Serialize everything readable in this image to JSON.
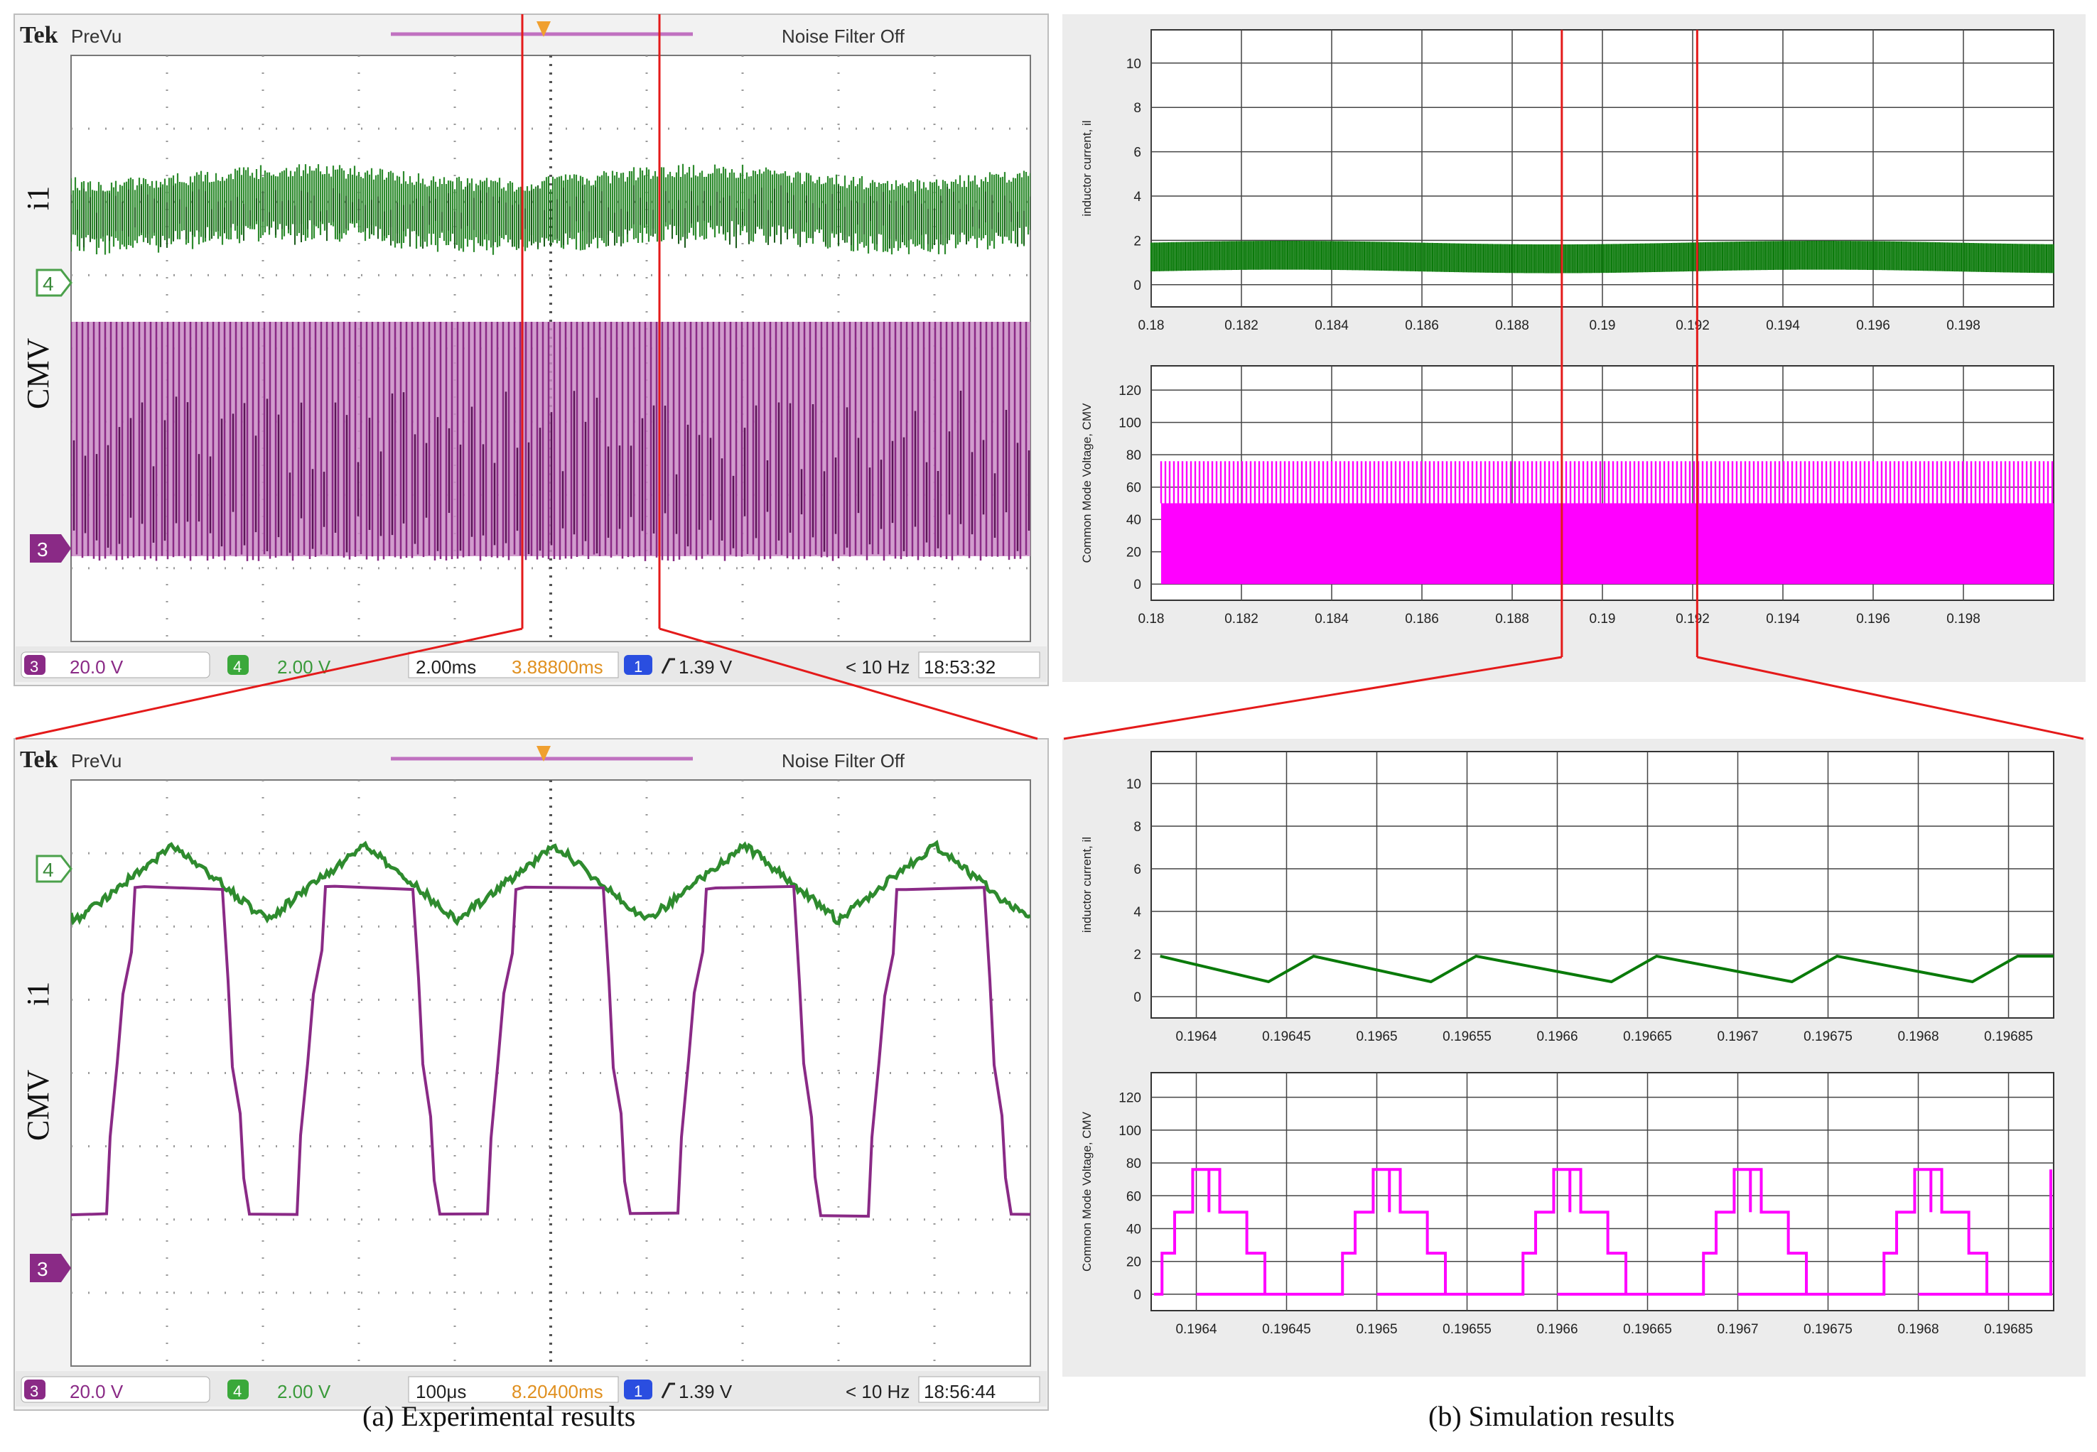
{
  "figure": {
    "caption_left": "(a) Experimental results",
    "caption_right": "(b) Simulation results",
    "colors": {
      "zoom_lines": "#e41a1a",
      "current_trace": "#2e8b2e",
      "current_trace_dark": "#1c5c1c",
      "cmv_trace": "#8a2a86",
      "cmv_trace_light": "#c98bc4",
      "sim_current": "#0a7a0a",
      "sim_cmv": "#ff00ff"
    }
  },
  "scope_top": {
    "brand": "Tek",
    "mode": "PreVu",
    "filter": "Noise Filter Off",
    "trace_labels": {
      "current": "i1",
      "cmv": "CMV"
    },
    "channel_markers": {
      "current": "4",
      "cmv": "3"
    },
    "status": {
      "ch3_num": "3",
      "ch3_scale": "20.0 V",
      "ch4_num": "4",
      "ch4_scale": "2.00 V",
      "timebase": "2.00ms",
      "position": "3.88800ms",
      "trig_num": "1",
      "trigger": "1.39 V",
      "freq": "< 10 Hz",
      "time": "18:53:32"
    }
  },
  "scope_bottom": {
    "brand": "Tek",
    "mode": "PreVu",
    "filter": "Noise Filter Off",
    "trace_labels": {
      "current": "i1",
      "cmv": "CMV"
    },
    "channel_markers": {
      "current": "4",
      "cmv": "3"
    },
    "status": {
      "ch3_num": "3",
      "ch3_scale": "20.0 V",
      "ch4_num": "4",
      "ch4_scale": "2.00 V",
      "timebase": "100μs",
      "position": "8.20400ms",
      "trig_num": "1",
      "trigger": "1.39 V",
      "freq": "< 10 Hz",
      "time": "18:56:44"
    }
  },
  "chart_data": [
    {
      "type": "line",
      "ylabel": "inductor current, il",
      "xlim": [
        0.18,
        0.2
      ],
      "ylim": [
        -1,
        11.5
      ],
      "xticks": [
        0.18,
        0.182,
        0.184,
        0.186,
        0.188,
        0.19,
        0.192,
        0.194,
        0.196,
        0.198
      ],
      "xtick_labels": [
        "0.18",
        "0.182",
        "0.184",
        "0.186",
        "0.188",
        "0.19",
        "0.192",
        "0.194",
        "0.196",
        "0.198"
      ],
      "yticks": [
        0,
        2,
        4,
        6,
        8,
        10
      ],
      "grid": true,
      "series": [
        {
          "band_min": 0.6,
          "band_max": 1.9,
          "ripple_period": 4e-05
        }
      ]
    },
    {
      "type": "line",
      "ylabel": "Common Mode Voltage, CMV",
      "xlim": [
        0.18,
        0.2
      ],
      "ylim": [
        -10,
        135
      ],
      "xticks": [
        0.18,
        0.182,
        0.184,
        0.186,
        0.188,
        0.19,
        0.192,
        0.194,
        0.196,
        0.198
      ],
      "xtick_labels": [
        "0.18",
        "0.182",
        "0.184",
        "0.186",
        "0.188",
        "0.19",
        "0.192",
        "0.194",
        "0.196",
        "0.198"
      ],
      "yticks": [
        0,
        20,
        40,
        60,
        80,
        100,
        120
      ],
      "grid": true,
      "series": [
        {
          "band_min": 0,
          "band_max": 76,
          "dense_level": 50
        }
      ]
    },
    {
      "type": "line",
      "ylabel": "inductor current, il",
      "xlim": [
        0.196375,
        0.196875
      ],
      "ylim": [
        -1,
        11.5
      ],
      "xticks": [
        0.1964,
        0.19645,
        0.1965,
        0.19655,
        0.1966,
        0.19665,
        0.1967,
        0.19675,
        0.1968,
        0.19685
      ],
      "xtick_labels": [
        "0.1964",
        "0.19645",
        "0.1965",
        "0.19655",
        "0.1966",
        "0.19665",
        "0.1967",
        "0.19675",
        "0.1968",
        "0.19685"
      ],
      "yticks": [
        0,
        2,
        4,
        6,
        8,
        10
      ],
      "grid": true,
      "series": [
        {
          "x": [
            0.19638,
            0.19644,
            0.196465,
            0.19653,
            0.196555,
            0.19663,
            0.196655,
            0.19673,
            0.196755,
            0.19683,
            0.196855,
            0.196875
          ],
          "y": [
            1.9,
            0.7,
            1.9,
            0.7,
            1.9,
            0.7,
            1.9,
            0.7,
            1.9,
            0.7,
            1.9,
            1.9
          ]
        }
      ]
    },
    {
      "type": "line",
      "ylabel": "Common Mode Voltage, CMV",
      "xlim": [
        0.196375,
        0.196875
      ],
      "ylim": [
        -10,
        135
      ],
      "xticks": [
        0.1964,
        0.19645,
        0.1965,
        0.19655,
        0.1966,
        0.19665,
        0.1967,
        0.19675,
        0.1968,
        0.19685
      ],
      "xtick_labels": [
        "0.1964",
        "0.19645",
        "0.1965",
        "0.19655",
        "0.1966",
        "0.19665",
        "0.1967",
        "0.19675",
        "0.1968",
        "0.19685"
      ],
      "yticks": [
        0,
        20,
        40,
        60,
        80,
        100,
        120
      ],
      "grid": true,
      "series": [
        {
          "period": 0.0001,
          "first_period_start": 0.1963,
          "steps_x_offset": [
            0.0,
            8.1e-05,
            8.8e-05,
            9.8e-05,
            0.000113,
            0.000128,
            0.000138,
            0.000145
          ],
          "steps_y": [
            0,
            25,
            50,
            76,
            50,
            25,
            0,
            0
          ],
          "spike_offset": 0.000107,
          "spike_value": 76
        }
      ]
    }
  ]
}
